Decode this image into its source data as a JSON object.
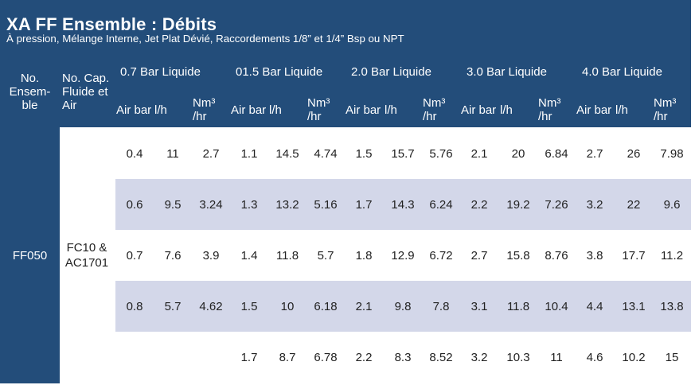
{
  "title": "XA FF Ensemble :  Débits",
  "subtitle": "À pression, Mélange Interne, Jet Plat Dévié, Raccordements 1/8” et 1/4” Bsp ou NPT",
  "header": {
    "col_no_ensemble": "No. Ensem- ble",
    "col_cap": "No. Cap. Fluide et Air",
    "groups": [
      "0.7 Bar Liquide",
      "01.5 Bar Liquide",
      "2.0 Bar Liquide",
      "3.0 Bar Liquide",
      "4.0 Bar Liquide"
    ],
    "sub_air": "Air bar",
    "sub_lh": "l/h",
    "sub_nm": "Nm³ /hr"
  },
  "ensemble": "FF050",
  "cap": "FC10 & AC1701",
  "rows": [
    [
      "0.4",
      "11",
      "2.7",
      "1.1",
      "14.5",
      "4.74",
      "1.5",
      "15.7",
      "5.76",
      "2.1",
      "20",
      "6.84",
      "2.7",
      "26",
      "7.98"
    ],
    [
      "0.6",
      "9.5",
      "3.24",
      "1.3",
      "13.2",
      "5.16",
      "1.7",
      "14.3",
      "6.24",
      "2.2",
      "19.2",
      "7.26",
      "3.2",
      "22",
      "9.6"
    ],
    [
      "0.7",
      "7.6",
      "3.9",
      "1.4",
      "11.8",
      "5.7",
      "1.8",
      "12.9",
      "6.72",
      "2.7",
      "15.8",
      "8.76",
      "3.8",
      "17.7",
      "11.2"
    ],
    [
      "0.8",
      "5.7",
      "4.62",
      "1.5",
      "10",
      "6.18",
      "2.1",
      "9.8",
      "7.8",
      "3.1",
      "11.8",
      "10.4",
      "4.4",
      "13.1",
      "13.8"
    ],
    [
      "",
      "",
      "",
      "1.7",
      "8.7",
      "6.78",
      "2.2",
      "8.3",
      "8.52",
      "3.2",
      "10.3",
      "11",
      "4.6",
      "10.2",
      "15"
    ]
  ]
}
